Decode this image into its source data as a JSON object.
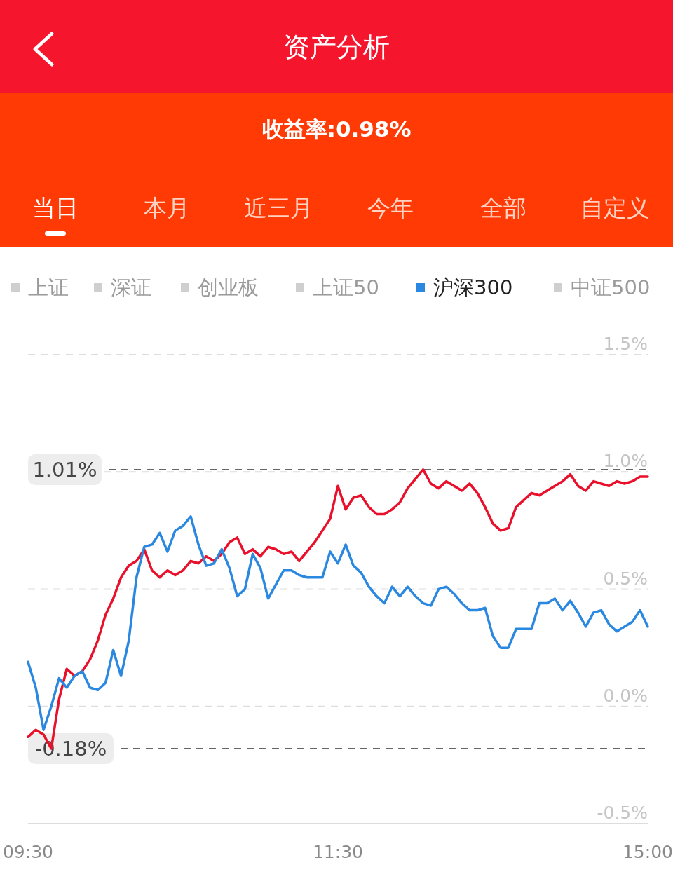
{
  "chart_data": {
    "type": "line",
    "title": "资产分析",
    "subtitle": "收益率:0.98%",
    "annotations": [
      "当日",
      "本月",
      "近三月",
      "今年",
      "全部",
      "自定义",
      "上证",
      "深证",
      "创业板",
      "上证50",
      "中证500"
    ],
    "categories": [
      "09:30",
      null,
      null,
      null,
      null,
      null,
      null,
      null,
      null,
      null,
      null,
      null,
      null,
      null,
      null,
      null,
      null,
      null,
      null,
      null,
      null,
      null,
      null,
      null,
      null,
      null,
      null,
      null,
      null,
      null,
      null,
      null,
      null,
      null,
      null,
      null,
      null,
      null,
      null,
      null,
      "11:30",
      null,
      null,
      null,
      null,
      null,
      null,
      null,
      null,
      null,
      null,
      null,
      null,
      null,
      null,
      null,
      null,
      null,
      null,
      null,
      null,
      null,
      null,
      null,
      null,
      null,
      null,
      null,
      null,
      null,
      null,
      null,
      null,
      null,
      null,
      null,
      null,
      null,
      null,
      null,
      "15:00"
    ],
    "ylim": [
      -0.5,
      1.5
    ],
    "yticks": [
      {
        "value": -0.5,
        "label": "-0.5%"
      },
      {
        "value": 0,
        "label": "0.0%"
      },
      {
        "value": 0.5,
        "label": "0.5%"
      },
      {
        "value": 1,
        "label": "1.0%"
      },
      {
        "value": 1.5,
        "label": "1.5%"
      }
    ],
    "grid": "y",
    "legend": "top",
    "marker": "none",
    "line_style": "solid",
    "ref_lines": [
      {
        "axis": "y",
        "value": 1.01,
        "label": "1.01%",
        "color": "#666666",
        "line_style": "dashed"
      },
      {
        "axis": "y",
        "value": -0.18,
        "label": "-0.18%",
        "color": "#666666",
        "line_style": "dashed"
      }
    ],
    "series": [
      {
        "color": "#e8102a",
        "values": [
          -0.13,
          -0.1,
          -0.12,
          -0.18,
          0.03,
          0.16,
          0.13,
          0.15,
          0.2,
          0.28,
          0.39,
          0.46,
          0.55,
          0.6,
          0.62,
          0.67,
          0.58,
          0.55,
          0.58,
          0.56,
          0.58,
          0.62,
          0.61,
          0.64,
          0.62,
          0.65,
          0.7,
          0.72,
          0.65,
          0.67,
          0.64,
          0.68,
          0.67,
          0.65,
          0.66,
          0.62,
          0.66,
          0.7,
          0.75,
          0.8,
          0.94,
          0.84,
          0.89,
          0.9,
          0.85,
          0.82,
          0.82,
          0.84,
          0.87,
          0.93,
          0.97,
          1.01,
          0.95,
          0.93,
          0.96,
          0.94,
          0.92,
          0.95,
          0.91,
          0.85,
          0.78,
          0.75,
          0.76,
          0.85,
          0.88,
          0.91,
          0.9,
          0.92,
          0.94,
          0.96,
          0.99,
          0.94,
          0.92,
          0.96,
          0.95,
          0.94,
          0.96,
          0.95,
          0.96,
          0.98,
          0.98
        ]
      },
      {
        "name": "沪深300",
        "color": "#2b88e0",
        "values": [
          0.19,
          0.08,
          -0.1,
          0.0,
          0.12,
          0.08,
          0.13,
          0.15,
          0.08,
          0.07,
          0.1,
          0.24,
          0.13,
          0.28,
          0.55,
          0.68,
          0.69,
          0.74,
          0.66,
          0.75,
          0.77,
          0.81,
          0.69,
          0.6,
          0.61,
          0.67,
          0.59,
          0.47,
          0.5,
          0.65,
          0.59,
          0.46,
          0.52,
          0.58,
          0.58,
          0.56,
          0.55,
          0.55,
          0.55,
          0.66,
          0.61,
          0.69,
          0.6,
          0.57,
          0.51,
          0.47,
          0.44,
          0.51,
          0.47,
          0.51,
          0.47,
          0.44,
          0.43,
          0.5,
          0.51,
          0.48,
          0.44,
          0.41,
          0.41,
          0.42,
          0.3,
          0.25,
          0.25,
          0.33,
          0.33,
          0.33,
          0.44,
          0.44,
          0.46,
          0.41,
          0.45,
          0.4,
          0.34,
          0.4,
          0.41,
          0.35,
          0.32,
          0.34,
          0.36,
          0.41,
          0.34
        ]
      }
    ]
  }
}
